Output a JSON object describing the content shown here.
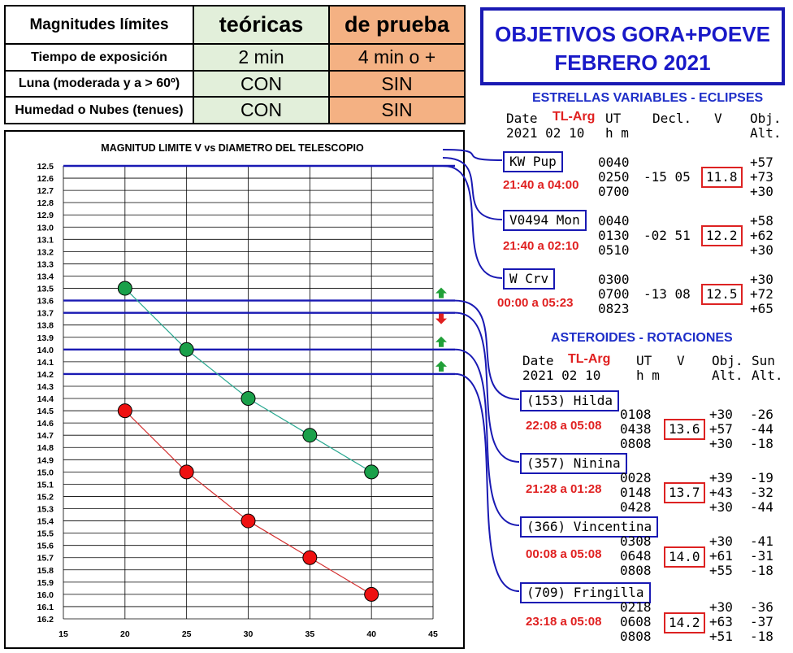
{
  "limits_table": {
    "headers": [
      "Magnitudes límites",
      "teóricas",
      "de prueba"
    ],
    "rows": [
      {
        "label": "Tiempo de exposición",
        "teoricas": "2 min",
        "prueba": "4 min o +"
      },
      {
        "label": "Luna (moderada y a > 60º)",
        "teoricas": "CON",
        "prueba": "SIN"
      },
      {
        "label": "Humedad o Nubes (tenues)",
        "teoricas": "CON",
        "prueba": "SIN"
      }
    ],
    "colors": {
      "teoricas": "#e2efda",
      "prueba": "#f4b183"
    }
  },
  "title": {
    "line1": "OBJETIVOS GORA+POEVE",
    "line2": "FEBRERO 2021"
  },
  "variables": {
    "heading": "ESTRELLAS VARIABLES - ECLIPSES",
    "header": {
      "date": "Date",
      "tl": "TL-Arg",
      "ut": "UT",
      "decl": "Decl.",
      "v": "V",
      "obj": "Obj.",
      "date2": "2021 02 10",
      "hm": "h m",
      "alt": "Alt."
    },
    "items": [
      {
        "name": "KW Pup",
        "time": "21:40 a 04:00",
        "ut": [
          "0040",
          "0250",
          "0700"
        ],
        "decl": "-15 05",
        "v": "11.8",
        "alt": [
          "+57",
          "+73",
          "+30"
        ]
      },
      {
        "name": "V0494 Mon",
        "time": "21:40 a 02:10",
        "ut": [
          "0040",
          "0130",
          "0510"
        ],
        "decl": "-02 51",
        "v": "12.2",
        "alt": [
          "+58",
          "+62",
          "+30"
        ]
      },
      {
        "name": "W Crv",
        "time": "00:00 a 05:23",
        "ut": [
          "0300",
          "0700",
          "0823"
        ],
        "decl": "-13 08",
        "v": "12.5",
        "alt": [
          "+30",
          "+72",
          "+65"
        ]
      }
    ]
  },
  "asteroids": {
    "heading": "ASTEROIDES - ROTACIONES",
    "header": {
      "date": "Date",
      "tl": "TL-Arg",
      "ut": "UT",
      "v": "V",
      "obj": "Obj.",
      "sun": "Sun",
      "date2": "2021 02 10",
      "hm": "h m",
      "alt": "Alt.",
      "alt2": "Alt."
    },
    "items": [
      {
        "name": "(153) Hilda",
        "time": "22:08 a 05:08",
        "ut": [
          "0108",
          "0438",
          "0808"
        ],
        "v": "13.6",
        "alt": [
          "+30",
          "+57",
          "+30"
        ],
        "sun": [
          "-26",
          "-44",
          "-18"
        ]
      },
      {
        "name": "(357) Ninina",
        "time": "21:28 a 01:28",
        "ut": [
          "0028",
          "0148",
          "0428"
        ],
        "v": "13.7",
        "alt": [
          "+39",
          "+43",
          "+30"
        ],
        "sun": [
          "-19",
          "-32",
          "-44"
        ]
      },
      {
        "name": "(366) Vincentina",
        "time": "00:08 a 05:08",
        "ut": [
          "0308",
          "0648",
          "0808"
        ],
        "v": "14.0",
        "alt": [
          "+30",
          "+61",
          "+55"
        ],
        "sun": [
          "-41",
          "-31",
          "-18"
        ]
      },
      {
        "name": "(709) Fringilla",
        "time": "23:18 a 05:08",
        "ut": [
          "0218",
          "0608",
          "0808"
        ],
        "v": "14.2",
        "alt": [
          "+30",
          "+63",
          "+51"
        ],
        "sun": [
          "-36",
          "-37",
          "-18"
        ]
      }
    ]
  },
  "chart_data": {
    "type": "line",
    "title": "MAGNITUD LIMITE V vs DIAMETRO DEL TELESCOPIO",
    "xlabel": "",
    "ylabel": "",
    "x": [
      20,
      25,
      30,
      35,
      40
    ],
    "xlim": [
      15,
      45
    ],
    "xticks": [
      15,
      20,
      25,
      30,
      35,
      40,
      45
    ],
    "ylim": [
      12.5,
      16.2
    ],
    "y_inverted": true,
    "ystep": 0.1,
    "grid": true,
    "series": [
      {
        "values": [
          13.5,
          14.0,
          14.4,
          14.7,
          15.0
        ],
        "color": "#1aa04a",
        "line": "#2aa890"
      },
      {
        "values": [
          14.5,
          15.0,
          15.4,
          15.7,
          16.0
        ],
        "color": "#ee1111",
        "line": "#d33030"
      }
    ],
    "reference_lines": [
      12.5,
      13.6,
      13.7,
      14.0,
      14.2
    ],
    "arrows": [
      {
        "y": 13.6,
        "direction": "up",
        "color": "#21a038"
      },
      {
        "y": 13.7,
        "direction": "down",
        "color": "#e02020"
      },
      {
        "y": 14.0,
        "direction": "up",
        "color": "#21a038"
      },
      {
        "y": 14.2,
        "direction": "up",
        "color": "#21a038"
      }
    ]
  }
}
